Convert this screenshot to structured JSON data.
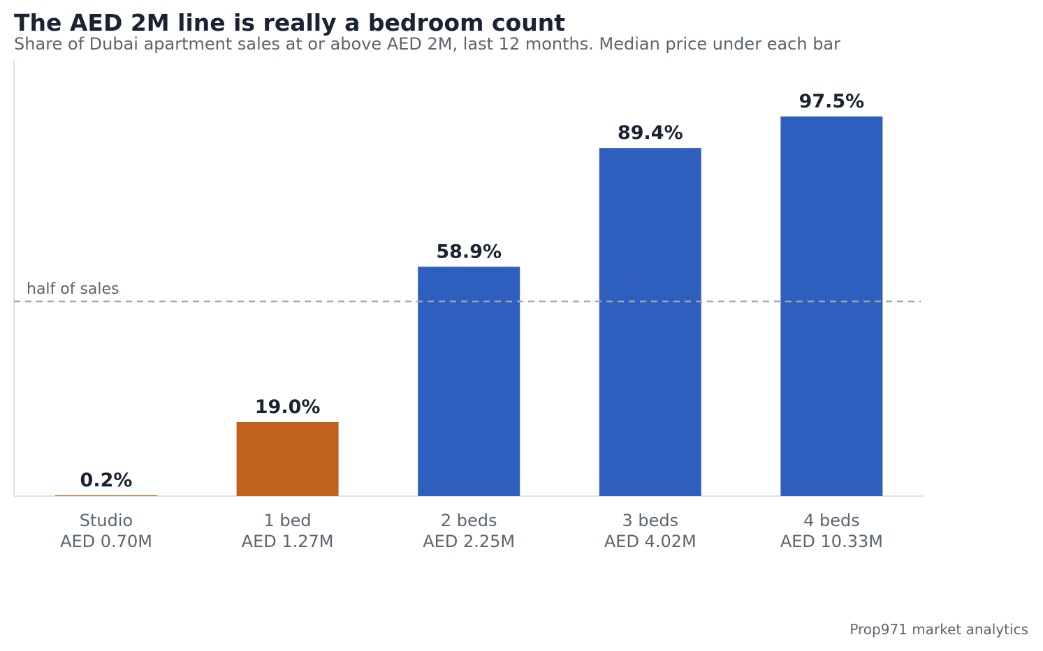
{
  "chart_data": {
    "type": "bar",
    "title": "The AED 2M line is really a bedroom count",
    "subtitle": "Share of Dubai apartment sales at or above AED 2M, last 12 months. Median price under each bar",
    "categories": [
      "Studio",
      "1 bed",
      "2 beds",
      "3 beds",
      "4 beds"
    ],
    "median_prices": [
      "AED 0.70M",
      "AED 1.27M",
      "AED 2.25M",
      "AED 4.02M",
      "AED 10.33M"
    ],
    "values": [
      0.2,
      19.0,
      58.9,
      89.4,
      97.5
    ],
    "value_labels": [
      "0.2%",
      "19.0%",
      "58.9%",
      "89.4%",
      "97.5%"
    ],
    "ylim": [
      0,
      112
    ],
    "reference_line": {
      "value": 50,
      "label": "half of sales",
      "color": "#a3a6ad"
    },
    "colors": {
      "below_line": "#c0611e",
      "above_line": "#2f5fbe",
      "axis": "#d5d7da"
    },
    "grid": false,
    "source": "Prop971 market analytics"
  }
}
